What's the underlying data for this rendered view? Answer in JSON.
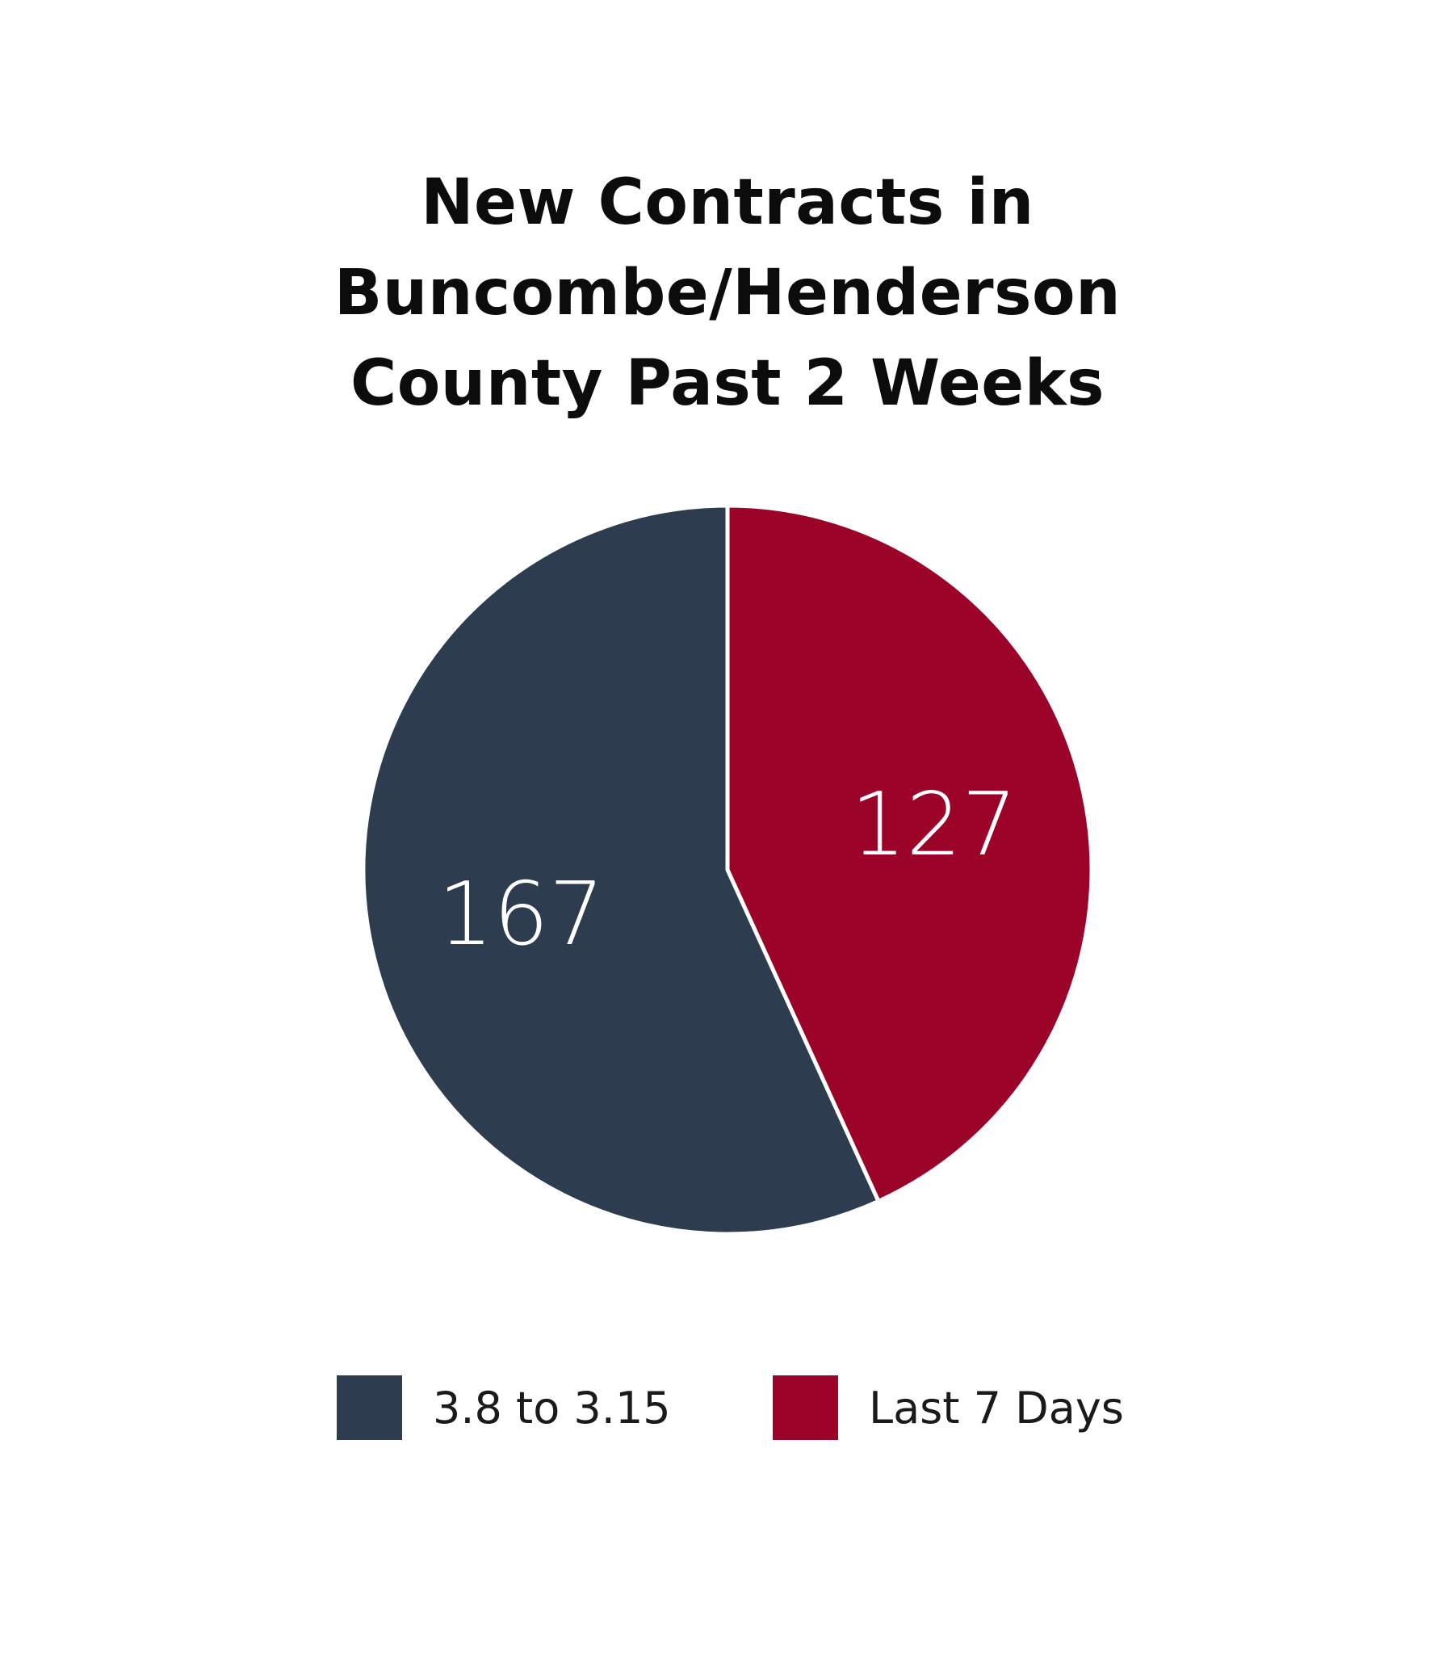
{
  "chart_data": {
    "type": "pie",
    "title_lines": [
      "New Contracts in",
      "Buncombe/Henderson",
      "County Past 2 Weeks"
    ],
    "slices": [
      {
        "label": "3.8 to 3.15",
        "value": 167,
        "value_label": "167",
        "color": "#2d3d4f"
      },
      {
        "label": "Last 7 Days",
        "value": 127,
        "value_label": "127",
        "color": "#9b0329"
      }
    ],
    "legend_position": "bottom",
    "slice_border_color": "#ffffff"
  }
}
